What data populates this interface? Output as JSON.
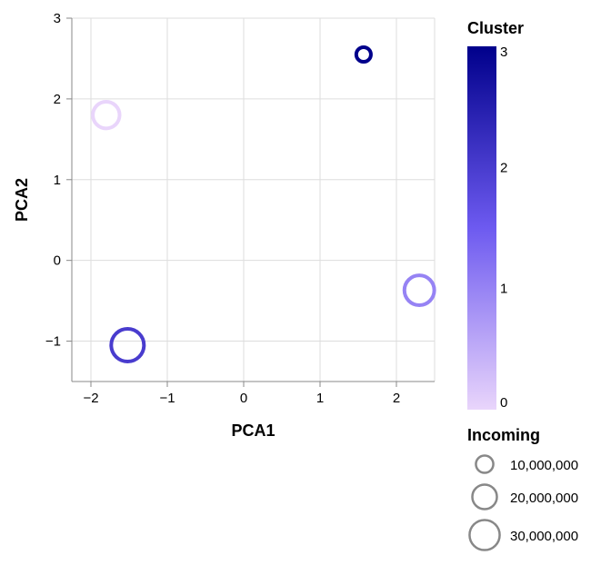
{
  "chart_data": {
    "type": "scatter",
    "xlabel": "PCA1",
    "ylabel": "PCA2",
    "xlim": [
      -2.25,
      2.5
    ],
    "ylim": [
      -1.5,
      3
    ],
    "x_ticks": [
      -2,
      -1,
      0,
      1,
      2
    ],
    "y_ticks": [
      -1,
      0,
      1,
      2,
      3
    ],
    "grid": true,
    "points": [
      {
        "x": -1.8,
        "y": 1.8,
        "cluster": 0,
        "incoming": 20000000
      },
      {
        "x": -1.52,
        "y": -1.05,
        "cluster": 2,
        "incoming": 30000000
      },
      {
        "x": 1.57,
        "y": 2.55,
        "cluster": 3,
        "incoming": 6000000
      },
      {
        "x": 2.3,
        "y": -0.37,
        "cluster": 1,
        "incoming": 25000000
      }
    ],
    "color_legend": {
      "title": "Cluster",
      "domain": [
        0,
        3
      ],
      "ticks": [
        0,
        1,
        2,
        3
      ],
      "colors": [
        "#e9d5fb",
        "#6d5af0",
        "#00008b"
      ],
      "placement": "right"
    },
    "size_legend": {
      "title": "Incoming",
      "entries": [
        {
          "value": 10000000,
          "label": "10,000,000"
        },
        {
          "value": 20000000,
          "label": "20,000,000"
        },
        {
          "value": 30000000,
          "label": "30,000,000"
        }
      ],
      "stroke": "#888888",
      "placement": "right"
    }
  }
}
